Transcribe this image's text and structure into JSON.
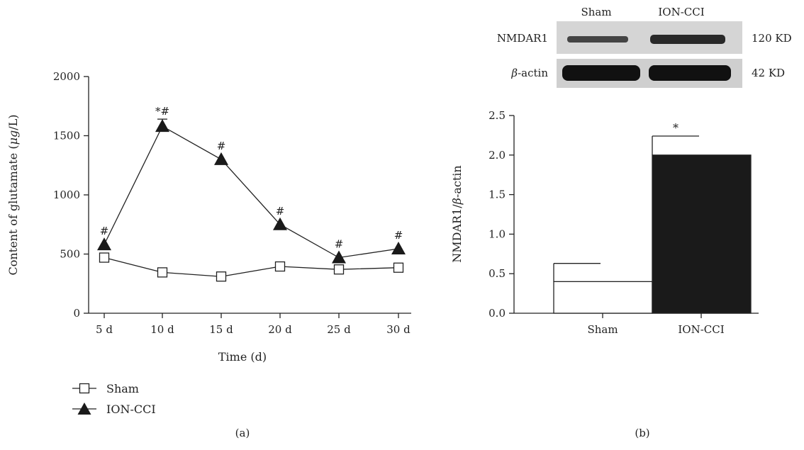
{
  "chart_data": [
    {
      "type": "line",
      "panel_label": "(a)",
      "xlabel": "Time (d)",
      "ylabel_parts": [
        "Content of glutamate (",
        "μg",
        "/L)"
      ],
      "categories": [
        "5 d",
        "10 d",
        "15 d",
        "20 d",
        "25 d",
        "30 d"
      ],
      "ylim": [
        0,
        2000
      ],
      "yticks": [
        0,
        500,
        1000,
        1500,
        2000
      ],
      "series": [
        {
          "name": "Sham",
          "marker": "open-square",
          "values": [
            470,
            345,
            310,
            395,
            370,
            385
          ],
          "error": [
            0,
            0,
            0,
            0,
            0,
            0
          ]
        },
        {
          "name": "ION-CCI",
          "marker": "filled-triangle",
          "values": [
            580,
            1580,
            1300,
            750,
            470,
            545
          ],
          "error": [
            0,
            60,
            0,
            0,
            0,
            0
          ],
          "annotations": [
            "#",
            "*#",
            "#",
            "#",
            "#",
            "#"
          ]
        }
      ],
      "legend_placement": "bottom-left"
    },
    {
      "type": "bar",
      "panel_label": "(b)",
      "ylabel_parts": [
        "NMDAR1/",
        "β",
        "-actin"
      ],
      "categories": [
        "Sham",
        "ION-CCI"
      ],
      "values": [
        0.4,
        2.0
      ],
      "errors": [
        0.23,
        0.24
      ],
      "annotations": [
        "",
        "*"
      ],
      "bar_colors": [
        "#ffffff",
        "#1a1a1a"
      ],
      "ylim": [
        0,
        2.5
      ],
      "yticks": [
        "0.0",
        "0.5",
        "1.0",
        "1.5",
        "2.0",
        "2.5"
      ],
      "blot": {
        "lanes": [
          "Sham",
          "ION-CCI"
        ],
        "rows": [
          {
            "label_parts": [
              "NMDAR1",
              "",
              ""
            ],
            "size": "120 KD"
          },
          {
            "label_parts": [
              "",
              "β",
              "-actin"
            ],
            "size": "42 KD"
          }
        ]
      }
    }
  ]
}
